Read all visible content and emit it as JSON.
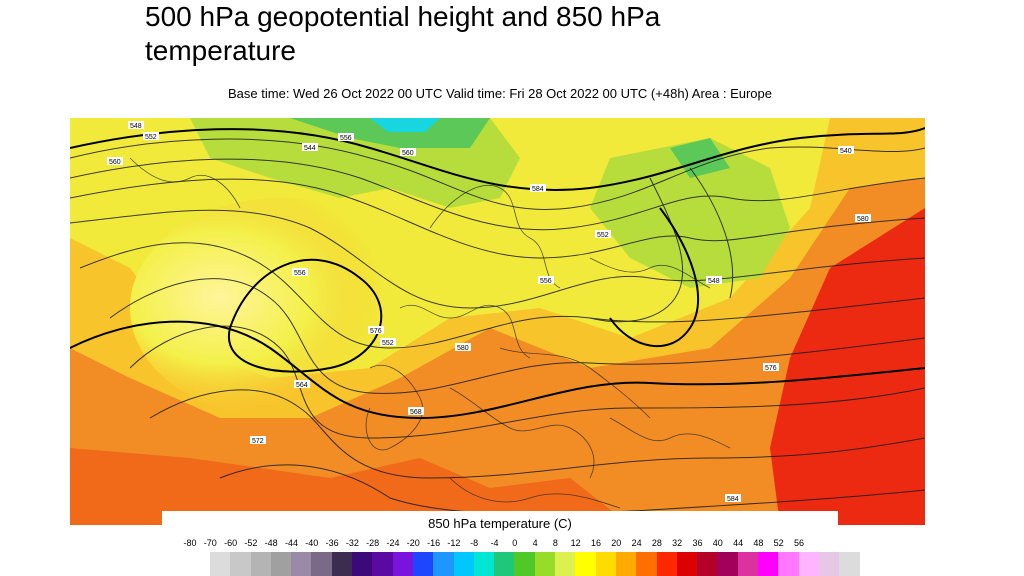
{
  "title": "500 hPa geopotential height and 850 hPa temperature",
  "subtitle": "Base time: Wed 26 Oct 2022 00 UTC Valid time: Fri 28 Oct 2022 00 UTC (+48h) Area : Europe",
  "legend": {
    "title": "850 hPa temperature (C)",
    "ticks": [
      "-80",
      "-70",
      "-60",
      "-52",
      "-48",
      "-44",
      "-40",
      "-36",
      "-32",
      "-28",
      "-24",
      "-20",
      "-16",
      "-12",
      "-8",
      "-4",
      "0",
      "4",
      "8",
      "12",
      "16",
      "20",
      "24",
      "28",
      "32",
      "36",
      "40",
      "44",
      "48",
      "52",
      "56"
    ],
    "colors": [
      "#dcdcdc",
      "#c8c8c8",
      "#b4b4b4",
      "#a0a0a0",
      "#9a8aa8",
      "#7a6a88",
      "#3c2c50",
      "#3c0a78",
      "#5a0aa0",
      "#7814dc",
      "#1e46ff",
      "#1e96ff",
      "#00c8ff",
      "#00e6d2",
      "#1ec878",
      "#50c828",
      "#96dc28",
      "#dcf050",
      "#ffff00",
      "#ffdc00",
      "#ffaa00",
      "#ff6e00",
      "#ff2800",
      "#dc0000",
      "#b40028",
      "#a0005a",
      "#dc32a0",
      "#ff00ff",
      "#ff78ff",
      "#ffb4ff",
      "#e6c8e6",
      "#dcdcdc"
    ]
  },
  "map_labels": [
    "548",
    "552",
    "560",
    "544",
    "556",
    "572",
    "576",
    "580",
    "564",
    "568",
    "580",
    "584",
    "552",
    "556",
    "560",
    "548",
    "540",
    "556",
    "552",
    "576",
    "584"
  ]
}
